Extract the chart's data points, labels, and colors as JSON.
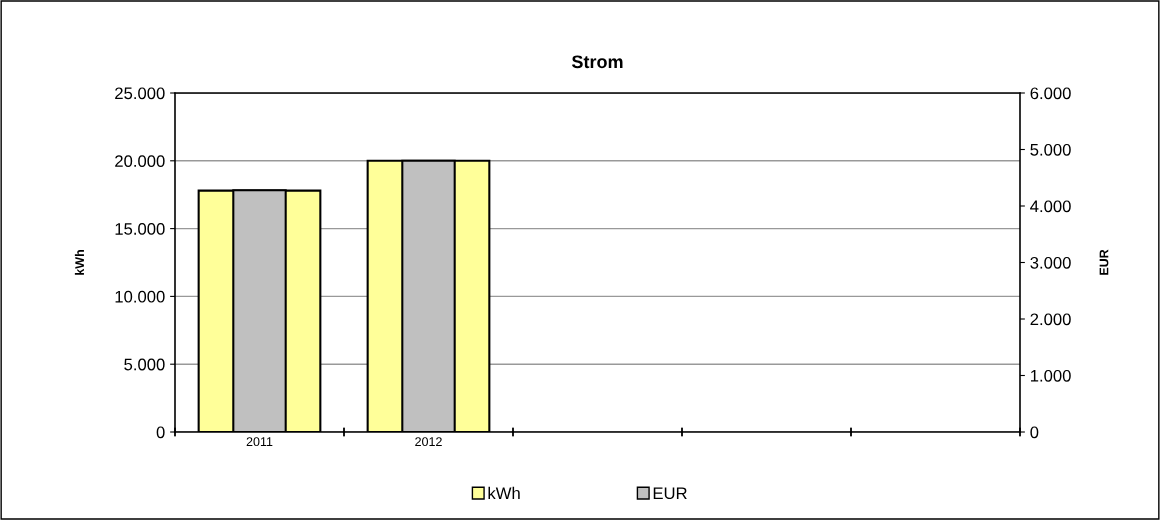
{
  "chart_data": {
    "type": "bar",
    "title": "Strom",
    "ylabel": "kWh",
    "y2label": "EUR",
    "categories": [
      "2011",
      "2012",
      null,
      null,
      null
    ],
    "series": [
      {
        "name": "kWh",
        "color": "#ffff99",
        "values": [
          17800,
          20000,
          null,
          null,
          null
        ]
      },
      {
        "name": "EUR",
        "color": "#c0c0c0",
        "values": [
          4280,
          4800,
          null,
          null,
          null
        ],
        "axis": "y2"
      }
    ],
    "ylim": [
      0,
      25000
    ],
    "yticks": [
      {
        "value": 0,
        "label": "0"
      },
      {
        "value": 5000,
        "label": "5.000"
      },
      {
        "value": 10000,
        "label": "10.000"
      },
      {
        "value": 15000,
        "label": "15.000"
      },
      {
        "value": 20000,
        "label": "20.000"
      },
      {
        "value": 25000,
        "label": "25.000"
      }
    ],
    "y2lim": [
      0,
      6000
    ],
    "y2ticks": [
      {
        "value": 0,
        "label": "0"
      },
      {
        "value": 1000,
        "label": "1.000"
      },
      {
        "value": 2000,
        "label": "2.000"
      },
      {
        "value": 3000,
        "label": "3.000"
      },
      {
        "value": 4000,
        "label": "4.000"
      },
      {
        "value": 5000,
        "label": "5.000"
      },
      {
        "value": 6000,
        "label": "6.000"
      }
    ],
    "grid": "y",
    "legend": "bottom"
  }
}
